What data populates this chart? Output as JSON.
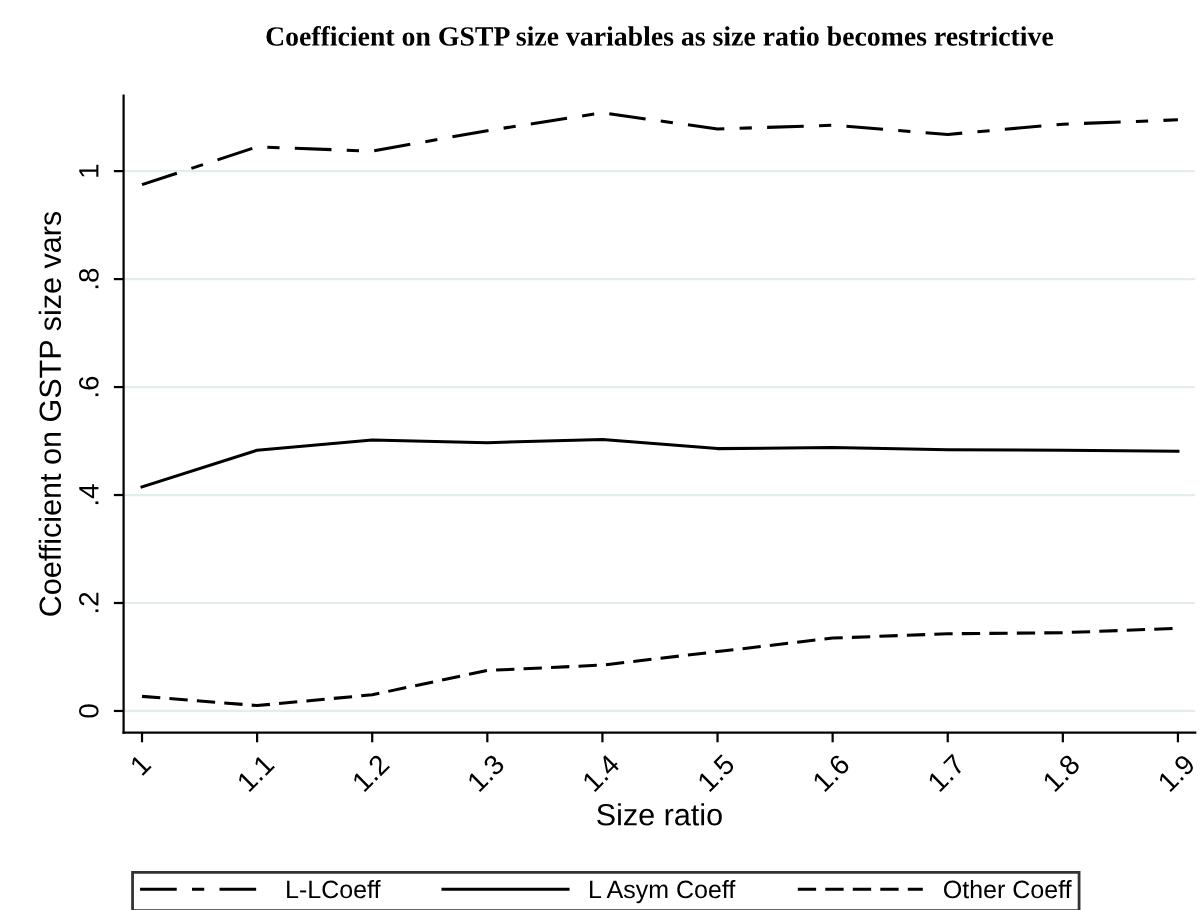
{
  "chart_data": {
    "type": "line",
    "title": "Coefficient on GSTP size variables as size ratio becomes restrictive",
    "xlabel": "Size ratio",
    "ylabel": "Coefficient on GSTP size vars",
    "x": [
      1,
      1.1,
      1.2,
      1.3,
      1.4,
      1.5,
      1.6,
      1.7,
      1.8,
      1.9
    ],
    "series": [
      {
        "name": "L-LCoeff",
        "color": "#000000",
        "line_style": "longdash",
        "values": [
          0.975,
          1.045,
          1.037,
          1.075,
          1.108,
          1.078,
          1.085,
          1.068,
          1.087,
          1.095
        ]
      },
      {
        "name": "L Asym Coeff",
        "color": "#000000",
        "line_style": "solid",
        "values": [
          0.415,
          0.483,
          0.502,
          0.497,
          0.503,
          0.486,
          0.488,
          0.484,
          0.483,
          0.481
        ]
      },
      {
        "name": "Other Coeff",
        "color": "#000000",
        "line_style": "dashed",
        "values": [
          0.027,
          0.01,
          0.03,
          0.075,
          0.085,
          0.11,
          0.135,
          0.143,
          0.145,
          0.153
        ]
      }
    ],
    "xlim": [
      0.984,
      1.915
    ],
    "ylim": [
      -0.04,
      1.14
    ],
    "xticks": [
      1,
      1.1,
      1.2,
      1.3,
      1.4,
      1.5,
      1.6,
      1.7,
      1.8,
      1.9
    ],
    "yticks": [
      0,
      {
        "value": 0.2,
        "label": ".2"
      },
      {
        "value": 0.4,
        "label": ".4"
      },
      {
        "value": 0.6,
        "label": ".6"
      },
      {
        "value": 0.8,
        "label": ".8"
      },
      1
    ],
    "grid": "y",
    "legend": "bottom",
    "marker": "none"
  }
}
